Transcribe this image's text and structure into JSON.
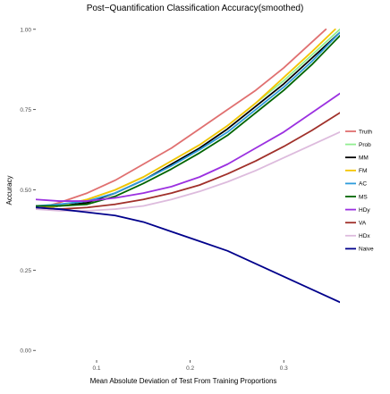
{
  "chart_data": {
    "type": "line",
    "title": "Post−Quantification Classification Accuracy(smoothed)",
    "xlabel": "Mean Absolute Deviation of Test From Training Proportions",
    "ylabel": "Accuracy",
    "xlim": [
      0.035,
      0.36
    ],
    "ylim": [
      -0.03,
      1.03
    ],
    "x_ticks": [
      {
        "value": 0.1,
        "label": "0.1"
      },
      {
        "value": 0.2,
        "label": "0.2"
      },
      {
        "value": 0.3,
        "label": "0.3"
      }
    ],
    "y_ticks": [
      {
        "value": 0.0,
        "label": "0.00"
      },
      {
        "value": 0.25,
        "label": "0.25"
      },
      {
        "value": 0.5,
        "label": "0.50"
      },
      {
        "value": 0.75,
        "label": "0.75"
      },
      {
        "value": 1.0,
        "label": "1.00"
      }
    ],
    "grid": false,
    "legend_position": "right",
    "series": [
      {
        "name": "Truth",
        "color": "#E07070",
        "x": [
          0.035,
          0.06,
          0.09,
          0.12,
          0.15,
          0.18,
          0.21,
          0.24,
          0.27,
          0.3,
          0.33,
          0.345
        ],
        "y": [
          0.44,
          0.46,
          0.49,
          0.53,
          0.58,
          0.63,
          0.69,
          0.75,
          0.81,
          0.88,
          0.96,
          1.0
        ]
      },
      {
        "name": "Prob",
        "color": "#90EE90",
        "x": [
          0.035,
          0.06,
          0.09,
          0.12,
          0.15,
          0.18,
          0.21,
          0.24,
          0.27,
          0.3,
          0.33,
          0.36
        ],
        "y": [
          0.44,
          0.45,
          0.47,
          0.5,
          0.54,
          0.59,
          0.64,
          0.7,
          0.77,
          0.84,
          0.92,
          1.0
        ]
      },
      {
        "name": "MM",
        "color": "#000000",
        "x": [
          0.035,
          0.06,
          0.09,
          0.12,
          0.15,
          0.18,
          0.21,
          0.24,
          0.27,
          0.3,
          0.33,
          0.36
        ],
        "y": [
          0.44,
          0.45,
          0.46,
          0.49,
          0.53,
          0.58,
          0.63,
          0.69,
          0.76,
          0.83,
          0.91,
          0.99
        ]
      },
      {
        "name": "FM",
        "color": "#F5C400",
        "x": [
          0.035,
          0.06,
          0.09,
          0.12,
          0.15,
          0.18,
          0.21,
          0.24,
          0.27,
          0.3,
          0.33,
          0.355
        ],
        "y": [
          0.44,
          0.45,
          0.47,
          0.5,
          0.54,
          0.59,
          0.64,
          0.7,
          0.77,
          0.85,
          0.93,
          1.0
        ]
      },
      {
        "name": "AC",
        "color": "#2E9BDB",
        "x": [
          0.035,
          0.06,
          0.09,
          0.12,
          0.15,
          0.18,
          0.21,
          0.24,
          0.27,
          0.3,
          0.33,
          0.36
        ],
        "y": [
          0.45,
          0.455,
          0.465,
          0.49,
          0.53,
          0.575,
          0.625,
          0.68,
          0.75,
          0.82,
          0.9,
          0.99
        ]
      },
      {
        "name": "MS",
        "color": "#006400",
        "x": [
          0.035,
          0.06,
          0.09,
          0.12,
          0.15,
          0.18,
          0.21,
          0.24,
          0.27,
          0.3,
          0.33,
          0.36
        ],
        "y": [
          0.45,
          0.45,
          0.455,
          0.48,
          0.52,
          0.565,
          0.615,
          0.67,
          0.74,
          0.81,
          0.89,
          0.98
        ]
      },
      {
        "name": "HDy",
        "color": "#9B30E0",
        "x": [
          0.035,
          0.06,
          0.09,
          0.12,
          0.15,
          0.18,
          0.21,
          0.24,
          0.27,
          0.3,
          0.33,
          0.36
        ],
        "y": [
          0.47,
          0.465,
          0.465,
          0.475,
          0.49,
          0.51,
          0.54,
          0.58,
          0.63,
          0.68,
          0.74,
          0.8
        ]
      },
      {
        "name": "VA",
        "color": "#A0302A",
        "x": [
          0.035,
          0.06,
          0.09,
          0.12,
          0.15,
          0.18,
          0.21,
          0.24,
          0.27,
          0.3,
          0.33,
          0.36
        ],
        "y": [
          0.44,
          0.44,
          0.445,
          0.455,
          0.47,
          0.49,
          0.515,
          0.55,
          0.59,
          0.635,
          0.685,
          0.74
        ]
      },
      {
        "name": "HDx",
        "color": "#DDBBDD",
        "x": [
          0.035,
          0.06,
          0.09,
          0.12,
          0.15,
          0.18,
          0.21,
          0.24,
          0.27,
          0.3,
          0.33,
          0.36
        ],
        "y": [
          0.44,
          0.435,
          0.435,
          0.44,
          0.45,
          0.47,
          0.495,
          0.525,
          0.56,
          0.6,
          0.64,
          0.68
        ]
      },
      {
        "name": "Naive",
        "color": "#00008B",
        "x": [
          0.035,
          0.06,
          0.09,
          0.12,
          0.15,
          0.18,
          0.21,
          0.24,
          0.27,
          0.3,
          0.33,
          0.36
        ],
        "y": [
          0.445,
          0.44,
          0.43,
          0.42,
          0.4,
          0.37,
          0.34,
          0.31,
          0.27,
          0.23,
          0.19,
          0.15
        ]
      }
    ]
  }
}
